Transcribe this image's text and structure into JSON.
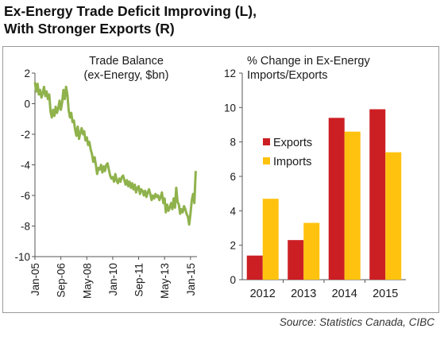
{
  "title_line1": "Ex-Energy Trade Deficit Improving (L),",
  "title_line2": "With Stronger Exports (R)",
  "source": "Source: Statistics Canada, CIBC",
  "colors": {
    "line": "#8fb24c",
    "exports": "#cc1f24",
    "imports": "#ffc20e",
    "axis": "#555555"
  },
  "chart_data": [
    {
      "type": "line",
      "title": "Trade Balance (ex-Energy, $bn)",
      "title_line1": "Trade Balance",
      "title_line2": "(ex-Energy, $bn)",
      "ylim": [
        -10,
        2
      ],
      "yticks": [
        2,
        0,
        -2,
        -4,
        -6,
        -8,
        -10
      ],
      "xlim": [
        "2005-01",
        "2015-06"
      ],
      "xticks": [
        "Jan-05",
        "Sep-06",
        "May-08",
        "Jan-10",
        "Sep-11",
        "May-13",
        "Jan-15"
      ],
      "grid": false,
      "series": [
        {
          "x": [
            "2005-01",
            "2005-02",
            "2005-03",
            "2005-04",
            "2005-05",
            "2005-06",
            "2005-07",
            "2005-08",
            "2005-09",
            "2005-10",
            "2005-11",
            "2005-12",
            "2006-01",
            "2006-02",
            "2006-03",
            "2006-04",
            "2006-05",
            "2006-06",
            "2006-07",
            "2006-08",
            "2006-09",
            "2006-10",
            "2006-11",
            "2006-12",
            "2007-01",
            "2007-02",
            "2007-03",
            "2007-04",
            "2007-05",
            "2007-06",
            "2007-07",
            "2007-08",
            "2007-09",
            "2007-10",
            "2007-11",
            "2007-12",
            "2008-01",
            "2008-02",
            "2008-03",
            "2008-04",
            "2008-05",
            "2008-06",
            "2008-07",
            "2008-08",
            "2008-09",
            "2008-10",
            "2008-11",
            "2008-12",
            "2009-01",
            "2009-02",
            "2009-03",
            "2009-04",
            "2009-05",
            "2009-06",
            "2009-07",
            "2009-08",
            "2009-09",
            "2009-10",
            "2009-11",
            "2009-12",
            "2010-01",
            "2010-02",
            "2010-03",
            "2010-04",
            "2010-05",
            "2010-06",
            "2010-07",
            "2010-08",
            "2010-09",
            "2010-10",
            "2010-11",
            "2010-12",
            "2011-01",
            "2011-02",
            "2011-03",
            "2011-04",
            "2011-05",
            "2011-06",
            "2011-07",
            "2011-08",
            "2011-09",
            "2011-10",
            "2011-11",
            "2011-12",
            "2012-01",
            "2012-02",
            "2012-03",
            "2012-04",
            "2012-05",
            "2012-06",
            "2012-07",
            "2012-08",
            "2012-09",
            "2012-10",
            "2012-11",
            "2012-12",
            "2013-01",
            "2013-02",
            "2013-03",
            "2013-04",
            "2013-05",
            "2013-06",
            "2013-07",
            "2013-08",
            "2013-09",
            "2013-10",
            "2013-11",
            "2013-12",
            "2014-01",
            "2014-02",
            "2014-03",
            "2014-04",
            "2014-05",
            "2014-06",
            "2014-07",
            "2014-08",
            "2014-09",
            "2014-10",
            "2014-11",
            "2014-12",
            "2015-01",
            "2015-02",
            "2015-03",
            "2015-04",
            "2015-05"
          ],
          "y": [
            1.4,
            0.8,
            1.3,
            0.6,
            0.9,
            0.4,
            0.7,
            1.1,
            0.5,
            0.8,
            0.3,
            0.6,
            -0.5,
            -0.9,
            -0.4,
            -0.8,
            -0.2,
            -0.6,
            -0.3,
            0.2,
            -0.4,
            0.1,
            0.9,
            0.3,
            1.1,
            0.6,
            -0.4,
            -0.9,
            -0.6,
            -1.2,
            -1.1,
            -1.7,
            -2.1,
            -1.5,
            -2.3,
            -1.9,
            -1.6,
            -2.0,
            -1.8,
            -2.4,
            -2.2,
            -2.7,
            -2.5,
            -3.0,
            -3.3,
            -3.8,
            -3.5,
            -4.0,
            -4.6,
            -4.2,
            -4.3,
            -4.0,
            -4.5,
            -4.1,
            -4.4,
            -4.0,
            -3.9,
            -4.3,
            -4.7,
            -4.9,
            -4.8,
            -5.1,
            -4.6,
            -5.0,
            -5.2,
            -4.9,
            -5.1,
            -4.8,
            -4.7,
            -5.0,
            -5.3,
            -5.0,
            -5.4,
            -5.1,
            -5.5,
            -5.2,
            -5.6,
            -5.3,
            -5.8,
            -5.5,
            -5.4,
            -5.9,
            -5.6,
            -5.7,
            -6.0,
            -5.7,
            -6.1,
            -5.8,
            -5.6,
            -5.9,
            -6.3,
            -6.0,
            -6.2,
            -5.9,
            -6.1,
            -6.0,
            -6.3,
            -6.1,
            -5.8,
            -6.5,
            -6.2,
            -7.1,
            -6.6,
            -7.0,
            -6.8,
            -6.5,
            -6.9,
            -6.2,
            -6.8,
            -5.5,
            -6.4,
            -6.6,
            -7.2,
            -6.9,
            -7.1,
            -6.7,
            -6.9,
            -7.2,
            -7.4,
            -7.9,
            -7.2,
            -6.3,
            -5.9,
            -6.5,
            -4.4
          ]
        }
      ]
    },
    {
      "type": "bar",
      "title": "% Change in Ex-Energy Imports/Exports",
      "title_line1": "% Change in Ex-Energy",
      "title_line2": "Imports/Exports",
      "categories": [
        "2012",
        "2013",
        "2014",
        "2015"
      ],
      "ylim": [
        0,
        12
      ],
      "yticks": [
        0,
        2,
        4,
        6,
        8,
        10,
        12
      ],
      "legend": "center-right",
      "grid": false,
      "series": [
        {
          "name": "Exports",
          "values": [
            1.4,
            2.3,
            9.4,
            9.9
          ]
        },
        {
          "name": "Imports",
          "values": [
            4.7,
            3.3,
            8.6,
            7.4
          ]
        }
      ]
    }
  ]
}
